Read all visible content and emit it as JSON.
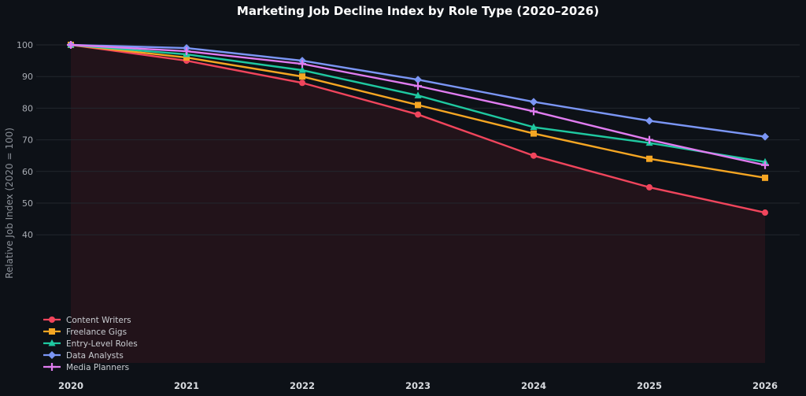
{
  "chart_data": {
    "type": "line",
    "title": "Marketing Job Decline Index by Role Type (2020–2026)",
    "xlabel": "",
    "ylabel": "Relative Job Index (2020 = 100)",
    "x": [
      "2020",
      "2021",
      "2022",
      "2023",
      "2024",
      "2025",
      "2026"
    ],
    "ylim": [
      0,
      105
    ],
    "yticks": [
      40,
      50,
      60,
      70,
      80,
      90,
      100
    ],
    "grid": true,
    "legend": "bottom-left",
    "series": [
      {
        "name": "Content Writers",
        "color": "#f0455c",
        "marker": "circle",
        "values": [
          100,
          95,
          88,
          78,
          65,
          55,
          47
        ],
        "fill_area": true
      },
      {
        "name": "Freelance Gigs",
        "color": "#f5a623",
        "marker": "square",
        "values": [
          100,
          96,
          90,
          81,
          72,
          64,
          58
        ]
      },
      {
        "name": "Entry-Level Roles",
        "color": "#1fc8a0",
        "marker": "triangle",
        "values": [
          100,
          97,
          92,
          84,
          74,
          69,
          63
        ]
      },
      {
        "name": "Data Analysts",
        "color": "#7b96f5",
        "marker": "diamond",
        "values": [
          100,
          99,
          95,
          89,
          82,
          76,
          71
        ]
      },
      {
        "name": "Media Planners",
        "color": "#e07cf0",
        "marker": "plus",
        "values": [
          100,
          98,
          94,
          87,
          79,
          70,
          62
        ]
      }
    ]
  }
}
